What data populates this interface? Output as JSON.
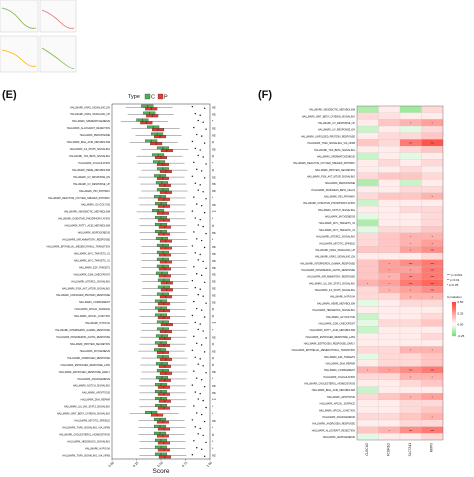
{
  "panels": {
    "e": {
      "letter": "(E)"
    },
    "f": {
      "letter": "(F)"
    }
  },
  "colors": {
    "c": "#4caf50",
    "p": "#e53935",
    "neg": "#2e7d32",
    "pos": "#d32f2f"
  },
  "chart_data": [
    {
      "type": "box",
      "panel": "E",
      "legend": {
        "title": "Type",
        "entries": [
          "C",
          "P"
        ]
      },
      "xlabel": "Score",
      "xticks": [
        "0.00",
        "0.25",
        "0.50",
        "0.75",
        "1.00"
      ],
      "xlim": [
        0,
        1
      ],
      "categories": [
        "HALLMARK_KRAS_SIGNALING_DN",
        "HALLMARK_KRAS_SIGNALING_UP",
        "HALLMARK_SPERMATOGENESIS",
        "HALLMARK_ALLOGRAFT_REJECTION",
        "HALLMARK_PEROXISOME",
        "HALLMARK_BILE_ACID_METABOLISM",
        "HALLMARK_IL2_STAT5_SIGNALING",
        "HALLMARK_TGF_BETA_SIGNALING",
        "HALLMARK_COAGULATION",
        "HALLMARK_HEME_METABOLISM",
        "HALLMARK_UV_RESPONSE_DN",
        "HALLMARK_UV_RESPONSE_UP",
        "HALLMARK_P53_PATHWAY",
        "HALLMARK_REACTIVE_OXYGEN_SPECIES_PATHWAY",
        "HALLMARK_GLYCOLYSIS",
        "HALLMARK_XENOBIOTIC_METABOLISM",
        "HALLMARK_OXIDATIVE_PHOSPHORYLATION",
        "HALLMARK_FATTY_ACID_METABOLISM",
        "HALLMARK_ADIPOGENESIS",
        "HALLMARK_INFLAMMATORY_RESPONSE",
        "HALLMARK_EPITHELIAL_MESENCHYMAL_TRANSITION",
        "HALLMARK_MYC_TARGETS_V2",
        "HALLMARK_MYC_TARGETS_V1",
        "HALLMARK_E2F_TARGETS",
        "HALLMARK_G2M_CHECKPOINT",
        "HALLMARK_MTORC1_SIGNALING",
        "HALLMARK_PI3K_AKT_MTOR_SIGNALING",
        "HALLMARK_UNFOLDED_PROTEIN_RESPONSE",
        "HALLMARK_COMPLEMENT",
        "HALLMARK_APICAL_SURFACE",
        "HALLMARK_APICAL_JUNCTION",
        "HALLMARK_HYPOXIA",
        "HALLMARK_INTERFERON_GAMMA_RESPONSE",
        "HALLMARK_INTERFERON_ALPHA_RESPONSE",
        "HALLMARK_PROTEIN_SECRETION",
        "HALLMARK_MYOGENESIS",
        "HALLMARK_ANDROGEN_RESPONSE",
        "HALLMARK_ESTROGEN_RESPONSE_LATE",
        "HALLMARK_ESTROGEN_RESPONSE_EARLY",
        "HALLMARK_ANGIOGENESIS",
        "HALLMARK_NOTCH_SIGNALING",
        "HALLMARK_APOPTOSIS",
        "HALLMARK_DNA_REPAIR",
        "HALLMARK_IL6_JAK_STAT3_SIGNALING",
        "HALLMARK_WNT_BETA_CATENIN_SIGNALING",
        "HALLMARK_MITOTIC_SPINDLE",
        "HALLMARK_TNFA_SIGNALING_VIA_NFKB",
        "HALLMARK_CHOLESTEROL_HOMEOSTASIS",
        "HALLMARK_HEDGEHOG_SIGNALING",
        "HALLMARK_HYPOXIA",
        "HALLMARK_TNFA_SIGNALING_VIA_NFKB"
      ],
      "significance": [
        "ns",
        "ns",
        "*",
        "ns",
        "ns",
        "#",
        "ns",
        "#",
        "*",
        "#",
        "ns",
        "ns",
        "ns",
        "*",
        "ns",
        "***",
        "*",
        "#",
        "ns",
        "*",
        "ns",
        "ns",
        "ns",
        "ns",
        "ns",
        "ns",
        "ns",
        "ns",
        "ns",
        "#",
        "#",
        "***",
        "*",
        "ns",
        "#",
        "ns",
        "#",
        "#",
        "ns",
        "*",
        "ns",
        "ns",
        "***",
        "*",
        "*",
        "ns",
        "*",
        "#",
        "*",
        "*",
        "ns"
      ],
      "c_median": [
        0.36,
        0.38,
        0.31,
        0.42,
        0.46,
        0.4,
        0.52,
        0.47,
        0.48,
        0.52,
        0.49,
        0.51,
        0.52,
        0.49,
        0.5,
        0.47,
        0.5,
        0.5,
        0.5,
        0.51,
        0.52,
        0.52,
        0.52,
        0.52,
        0.51,
        0.53,
        0.53,
        0.52,
        0.5,
        0.5,
        0.5,
        0.52,
        0.52,
        0.51,
        0.5,
        0.49,
        0.52,
        0.51,
        0.52,
        0.51,
        0.5,
        0.5,
        0.5,
        0.5,
        0.4,
        0.49,
        0.49,
        0.49,
        0.5,
        0.5,
        0.5
      ],
      "p_median": [
        0.4,
        0.41,
        0.35,
        0.47,
        0.49,
        0.45,
        0.56,
        0.5,
        0.52,
        0.55,
        0.52,
        0.54,
        0.55,
        0.53,
        0.53,
        0.52,
        0.53,
        0.54,
        0.53,
        0.55,
        0.55,
        0.54,
        0.55,
        0.54,
        0.54,
        0.56,
        0.56,
        0.55,
        0.53,
        0.53,
        0.53,
        0.56,
        0.55,
        0.54,
        0.53,
        0.52,
        0.55,
        0.54,
        0.55,
        0.54,
        0.53,
        0.53,
        0.54,
        0.53,
        0.46,
        0.52,
        0.53,
        0.52,
        0.53,
        0.53,
        0.54
      ]
    },
    {
      "type": "heatmap",
      "panel": "F",
      "columns": [
        "CLEC4G",
        "FCGR1G",
        "SLC7A11",
        "MMP9"
      ],
      "rows": [
        "HALLMARK_XENOBIOTIC_METABOLISM",
        "HALLMARK_WNT_BETA_CATENIN_SIGNALING",
        "HALLMARK_UV_RESPONSE_UP",
        "HALLMARK_UV_RESPONSE_DN",
        "HALLMARK_UNFOLDED_PROTEIN_RESPONSE",
        "HALLMARK_TNFA_SIGNALING_VIA_NFKB",
        "HALLMARK_TGF_BETA_SIGNALING",
        "HALLMARK_SPERMATOGENESIS",
        "HALLMARK_REACTIVE_OXYGEN_SPECIES_PATHWAY",
        "HALLMARK_PROTEIN_SECRETION",
        "HALLMARK_PI3K_AKT_MTOR_SIGNALING",
        "HALLMARK_PEROXISOME",
        "HALLMARK_PANCREAS_BETA_CELLS",
        "HALLMARK_P53_PATHWAY",
        "HALLMARK_OXIDATIVE_PHOSPHORYLATION",
        "HALLMARK_NOTCH_SIGNALING",
        "HALLMARK_MYOGENESIS",
        "HALLMARK_MYC_TARGETS_V2",
        "HALLMARK_MYC_TARGETS_V1",
        "HALLMARK_MTORC1_SIGNALING",
        "HALLMARK_MITOTIC_SPINDLE",
        "HALLMARK_KRAS_SIGNALING_UP",
        "HALLMARK_KRAS_SIGNALING_DN",
        "HALLMARK_INTERFERON_GAMMA_RESPONSE",
        "HALLMARK_INTERFERON_ALPHA_RESPONSE",
        "HALLMARK_INFLAMMATORY_RESPONSE",
        "HALLMARK_IL6_JAK_STAT3_SIGNALING",
        "HALLMARK_IL2_STAT5_SIGNALING",
        "HALLMARK_HYPOXIA",
        "HALLMARK_HEME_METABOLISM",
        "HALLMARK_HEDGEHOG_SIGNALING",
        "HALLMARK_GLYCOLYSIS",
        "HALLMARK_G2M_CHECKPOINT",
        "HALLMARK_FATTY_ACID_METABOLISM",
        "HALLMARK_ESTROGEN_RESPONSE_LATE",
        "HALLMARK_ESTROGEN_RESPONSE_EARLY",
        "HALLMARK_EPITHELIAL_MESENCHYMAL_TRANSITION",
        "HALLMARK_E2F_TARGETS",
        "HALLMARK_DNA_REPAIR",
        "HALLMARK_COMPLEMENT",
        "HALLMARK_COAGULATION",
        "HALLMARK_CHOLESTEROL_HOMEOSTASIS",
        "HALLMARK_BILE_ACID_METABOLISM",
        "HALLMARK_APOPTOSIS",
        "HALLMARK_APICAL_SURFACE",
        "HALLMARK_APICAL_JUNCTION",
        "HALLMARK_ANGIOGENESIS",
        "HALLMARK_ANDROGEN_RESPONSE",
        "HALLMARK_ALLOGRAFT_REJECTION",
        "HALLMARK_ADIPOGENESIS"
      ],
      "values": [
        [
          -0.15,
          0.05,
          -0.18,
          0.1
        ],
        [
          0.1,
          0.08,
          0.05,
          0.05
        ],
        [
          0.05,
          0.15,
          0.2,
          0.25
        ],
        [
          -0.1,
          0.05,
          -0.05,
          0.1
        ],
        [
          0.05,
          0.1,
          0.1,
          0.15
        ],
        [
          0.15,
          0.1,
          0.35,
          0.45
        ],
        [
          0.05,
          0.05,
          0.1,
          0.15
        ],
        [
          -0.1,
          0.05,
          -0.05,
          0.05
        ],
        [
          0.05,
          0.1,
          0.05,
          0.1
        ],
        [
          0.05,
          0.05,
          0.1,
          0.05
        ],
        [
          0.1,
          0.15,
          0.15,
          0.1
        ],
        [
          -0.15,
          0.05,
          -0.1,
          0.05
        ],
        [
          0.05,
          0.05,
          0.1,
          0.1
        ],
        [
          0.1,
          0.15,
          0.15,
          0.2
        ],
        [
          -0.1,
          0.05,
          0.05,
          0.05
        ],
        [
          0.05,
          0.05,
          0.1,
          0.1
        ],
        [
          -0.05,
          0.05,
          0.05,
          0.1
        ],
        [
          -0.15,
          0.05,
          0.05,
          0.1
        ],
        [
          -0.05,
          0.1,
          0.1,
          0.15
        ],
        [
          0.1,
          0.15,
          0.2,
          0.2
        ],
        [
          0.1,
          0.15,
          0.2,
          0.25
        ],
        [
          0.15,
          0.15,
          0.25,
          0.3
        ],
        [
          0.05,
          0.05,
          0.05,
          0.1
        ],
        [
          0.15,
          0.25,
          0.3,
          0.35
        ],
        [
          0.15,
          0.25,
          0.25,
          0.35
        ],
        [
          0.15,
          0.2,
          0.3,
          0.35
        ],
        [
          0.2,
          0.25,
          0.35,
          0.4
        ],
        [
          0.1,
          0.2,
          0.25,
          0.3
        ],
        [
          0.1,
          0.1,
          0.2,
          0.2
        ],
        [
          -0.05,
          0.05,
          0.1,
          0.1
        ],
        [
          0.05,
          0.05,
          0.05,
          0.05
        ],
        [
          -0.1,
          0.05,
          0.05,
          0.1
        ],
        [
          -0.05,
          0.1,
          0.1,
          0.15
        ],
        [
          -0.1,
          0.05,
          0.05,
          0.05
        ],
        [
          0.05,
          0.05,
          0.05,
          0.1
        ],
        [
          0.05,
          0.05,
          0.05,
          0.05
        ],
        [
          0.1,
          0.1,
          0.2,
          0.2
        ],
        [
          -0.05,
          0.1,
          0.1,
          0.15
        ],
        [
          0.05,
          0.1,
          0.1,
          0.15
        ],
        [
          0.2,
          0.25,
          0.3,
          0.35
        ],
        [
          0.1,
          0.1,
          0.2,
          0.2
        ],
        [
          0.05,
          0.05,
          0.1,
          0.15
        ],
        [
          -0.1,
          0.05,
          0.05,
          0.05
        ],
        [
          0.1,
          0.15,
          0.2,
          0.25
        ],
        [
          0.05,
          0.05,
          0.1,
          0.1
        ],
        [
          0.05,
          0.05,
          0.1,
          0.15
        ],
        [
          0.1,
          0.1,
          0.15,
          0.2
        ],
        [
          0.05,
          0.05,
          0.1,
          0.1
        ],
        [
          0.15,
          0.2,
          0.3,
          0.35
        ],
        [
          -0.05,
          0.05,
          0.05,
          0.1
        ]
      ],
      "legend": {
        "sig_entries": [
          "*** p<0.001",
          "** p<0.01",
          "* p<0.05"
        ],
        "colorbar_title": "Correlation",
        "colorbar_ticks": [
          "0.50",
          "0.25",
          "0.00",
          "-0.25"
        ],
        "range": [
          -0.25,
          0.5
        ]
      }
    }
  ]
}
